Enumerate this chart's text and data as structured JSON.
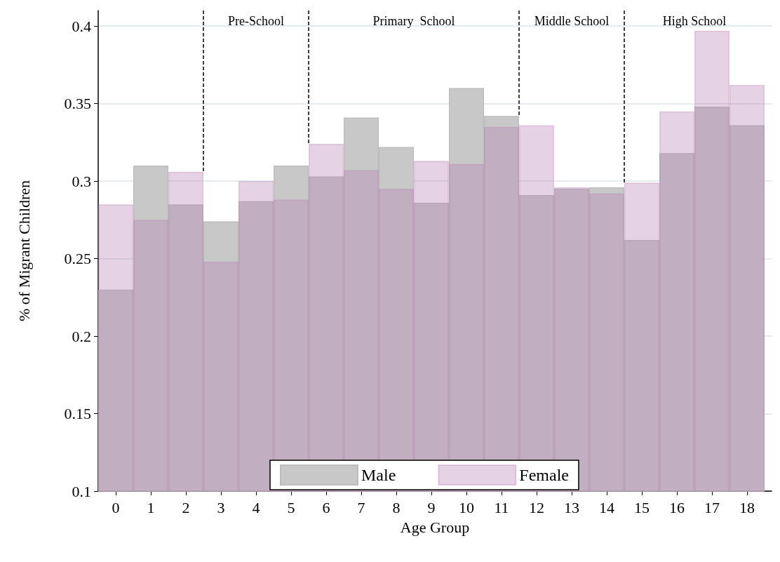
{
  "chart_data": {
    "type": "bar",
    "xlabel": "Age Group",
    "ylabel": "% of Migrant Children",
    "x": [
      0,
      1,
      2,
      3,
      4,
      5,
      6,
      7,
      8,
      9,
      10,
      11,
      12,
      13,
      14,
      15,
      16,
      17,
      18
    ],
    "series": [
      {
        "name": "Male",
        "color": "#c8c8c8",
        "values": [
          0.23,
          0.31,
          0.285,
          0.274,
          0.287,
          0.31,
          0.303,
          0.341,
          0.322,
          0.286,
          0.36,
          0.342,
          0.291,
          0.295,
          0.296,
          0.262,
          0.318,
          0.348,
          0.336
        ]
      },
      {
        "name": "Female",
        "color": "#b77fb5",
        "values": [
          0.285,
          0.275,
          0.306,
          0.248,
          0.3,
          0.288,
          0.324,
          0.307,
          0.295,
          0.313,
          0.311,
          0.335,
          0.336,
          0.296,
          0.292,
          0.299,
          0.345,
          0.397,
          0.362
        ]
      }
    ],
    "xlim": [
      -0.5,
      18.7
    ],
    "xticks": [
      0,
      1,
      2,
      3,
      4,
      5,
      6,
      7,
      8,
      9,
      10,
      11,
      12,
      13,
      14,
      15,
      16,
      17,
      18
    ],
    "ylim": [
      0.1,
      0.41
    ],
    "yticks": [
      0.1,
      0.15,
      0.2,
      0.25,
      0.3,
      0.35,
      0.4
    ],
    "grid": "y",
    "legend": "bottom",
    "ref_lines": [
      {
        "axis": "x",
        "value": 2.5,
        "line_style": "dashed"
      },
      {
        "axis": "x",
        "value": 5.5,
        "line_style": "dashed"
      },
      {
        "axis": "x",
        "value": 11.5,
        "line_style": "dashed"
      },
      {
        "axis": "x",
        "value": 14.5,
        "line_style": "dashed"
      }
    ],
    "annotations": [
      "Pre-School",
      "Primary  School",
      "Middle School",
      "High School"
    ]
  }
}
